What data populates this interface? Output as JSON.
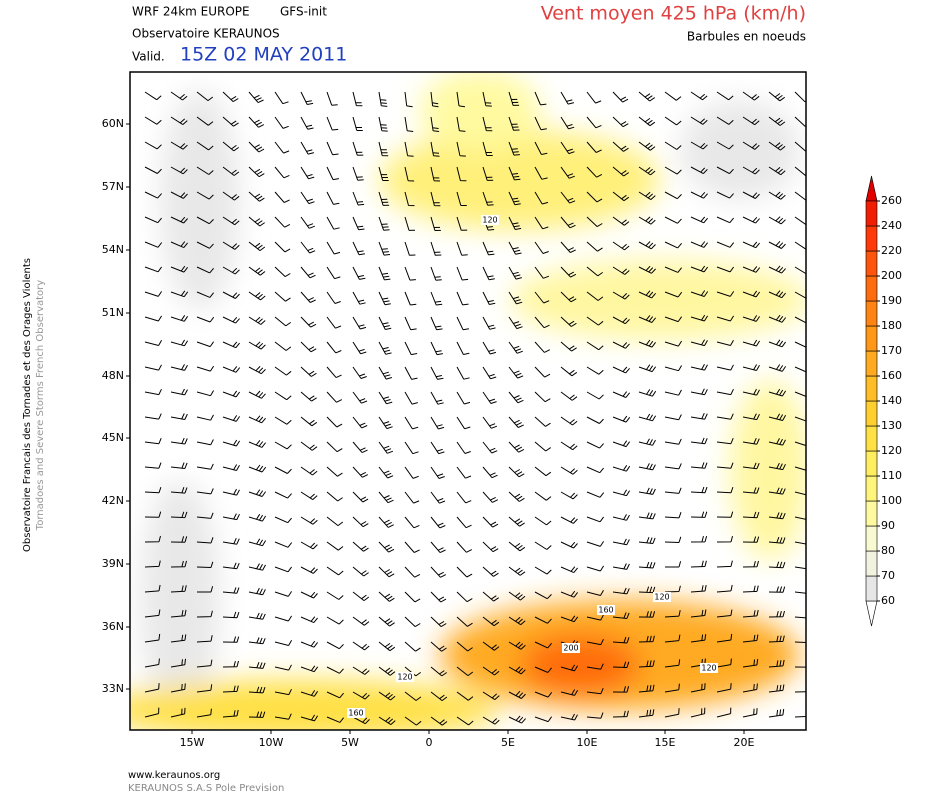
{
  "header": {
    "model": "WRF 24km EUROPE",
    "init": "GFS-init",
    "observatory": "Observatoire KERAUNOS",
    "valid_label": "Valid.",
    "valid_time": "15Z 02 MAY 2011",
    "title": "Vent moyen 425 hPa (km/h)",
    "subtitle": "Barbules en noeuds"
  },
  "side": {
    "line1": "Observatoire Francais des Tornades et des Orages Violents",
    "line2": "Tornadoes and Severe Storms French Observatory"
  },
  "map": {
    "lat_labels": [
      "60N",
      "57N",
      "54N",
      "51N",
      "48N",
      "45N",
      "42N",
      "39N",
      "36N",
      "33N"
    ],
    "lon_labels": [
      "15W",
      "10W",
      "5W",
      "0",
      "5E",
      "10E",
      "15E",
      "20E"
    ],
    "contour_labels": [
      "120",
      "160",
      "120",
      "200",
      "120",
      "120",
      "160"
    ]
  },
  "colorbar": {
    "levels": [
      60,
      70,
      80,
      90,
      100,
      110,
      120,
      130,
      140,
      160,
      170,
      180,
      190,
      200,
      220,
      240,
      260
    ],
    "colors": [
      "#ffffff",
      "#e6e6e6",
      "#f2f2e0",
      "#fafad2",
      "#fffaa0",
      "#fff57a",
      "#ffee60",
      "#ffe045",
      "#ffcf30",
      "#ffbd28",
      "#ffaa20",
      "#ff9818",
      "#ff8414",
      "#ff6c10",
      "#ff540c",
      "#ff3a08",
      "#f21e04",
      "#e00000"
    ]
  },
  "footer": {
    "url": "www.keraunos.org",
    "company": "KERAUNOS S.A.S Pole Prevision"
  }
}
